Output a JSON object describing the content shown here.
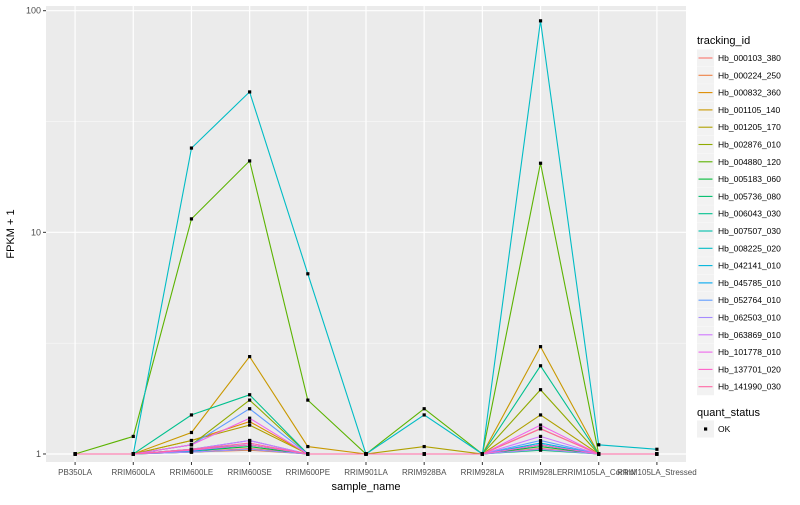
{
  "chart_data": {
    "type": "line",
    "title": "",
    "xlabel": "sample_name",
    "ylabel": "FPKM + 1",
    "y_scale": "log10",
    "ylim": [
      0.92,
      105
    ],
    "yticks": [
      1,
      10,
      100
    ],
    "ytick_labels": [
      "1",
      "10",
      "100"
    ],
    "grid": true,
    "legend_position": "right",
    "categories": [
      "PB350LA",
      "RRIM600LA",
      "RRIM600LE",
      "RRIM600SE",
      "RRIM600PE",
      "RRIM901LA",
      "RRIM928BA",
      "RRIM928LA",
      "RRIM928LE",
      "RRIM105LA_Control",
      "RRIM105LA_Stressed"
    ],
    "legend_title": "tracking_id",
    "series": [
      {
        "name": "Hb_000103_380",
        "color": "#F8766D",
        "values": [
          1.0,
          1.0,
          1.02,
          1.06,
          1.0,
          1.0,
          1.0,
          1.0,
          1.06,
          1.0,
          1.0
        ]
      },
      {
        "name": "Hb_000224_250",
        "color": "#EE8044",
        "values": [
          1.0,
          1.0,
          1.02,
          1.04,
          1.0,
          1.0,
          1.0,
          1.0,
          1.05,
          1.0,
          1.0
        ]
      },
      {
        "name": "Hb_000832_360",
        "color": "#DE8C00",
        "values": [
          1.0,
          1.0,
          1.15,
          1.4,
          1.0,
          1.0,
          1.0,
          1.0,
          1.3,
          1.0,
          1.0
        ]
      },
      {
        "name": "Hb_001105_140",
        "color": "#C99800",
        "values": [
          1.0,
          1.0,
          1.25,
          2.75,
          1.08,
          1.0,
          1.0,
          1.0,
          3.05,
          1.0,
          1.0
        ]
      },
      {
        "name": "Hb_001205_170",
        "color": "#B0A100",
        "values": [
          1.0,
          1.0,
          1.15,
          1.35,
          1.0,
          1.0,
          1.08,
          1.0,
          1.5,
          1.0,
          1.0
        ]
      },
      {
        "name": "Hb_002876_010",
        "color": "#8FAA00",
        "values": [
          1.0,
          1.0,
          1.1,
          1.75,
          1.0,
          1.0,
          1.0,
          1.0,
          1.95,
          1.0,
          1.0
        ]
      },
      {
        "name": "Hb_004880_120",
        "color": "#5BB300",
        "values": [
          1.0,
          1.2,
          11.5,
          21.0,
          1.75,
          1.0,
          1.6,
          1.0,
          20.5,
          1.0,
          1.0
        ]
      },
      {
        "name": "Hb_005183_060",
        "color": "#00BA38",
        "values": [
          1.0,
          1.0,
          1.03,
          1.08,
          1.0,
          1.0,
          1.0,
          1.0,
          1.08,
          1.0,
          1.0
        ]
      },
      {
        "name": "Hb_005736_080",
        "color": "#00BE6C",
        "values": [
          1.0,
          1.0,
          1.02,
          1.05,
          1.0,
          1.0,
          1.0,
          1.0,
          1.04,
          1.0,
          1.0
        ]
      },
      {
        "name": "Hb_006043_030",
        "color": "#00C08E",
        "values": [
          1.0,
          1.0,
          1.5,
          1.85,
          1.0,
          1.0,
          1.0,
          1.0,
          2.5,
          1.0,
          1.0
        ]
      },
      {
        "name": "Hb_007507_030",
        "color": "#00C0AB",
        "values": [
          1.0,
          1.0,
          1.05,
          1.1,
          1.0,
          1.0,
          1.0,
          1.0,
          1.1,
          1.0,
          1.0
        ]
      },
      {
        "name": "Hb_008225_020",
        "color": "#00BCC5",
        "values": [
          1.0,
          1.0,
          24.0,
          43.0,
          6.5,
          1.0,
          1.5,
          1.0,
          90.0,
          1.1,
          1.05
        ]
      },
      {
        "name": "Hb_042141_010",
        "color": "#00B5DC",
        "values": [
          1.0,
          1.0,
          1.05,
          1.15,
          1.0,
          1.0,
          1.0,
          1.0,
          1.12,
          1.0,
          1.0
        ]
      },
      {
        "name": "Hb_045785_010",
        "color": "#00A8F0",
        "values": [
          1.0,
          1.0,
          1.03,
          1.1,
          1.0,
          1.0,
          1.0,
          1.0,
          1.1,
          1.0,
          1.0
        ]
      },
      {
        "name": "Hb_052764_010",
        "color": "#619CFF",
        "values": [
          1.0,
          1.0,
          1.1,
          1.6,
          1.0,
          1.0,
          1.0,
          1.0,
          1.15,
          1.0,
          1.0
        ]
      },
      {
        "name": "Hb_062503_010",
        "color": "#A58AFF",
        "values": [
          1.0,
          1.0,
          1.02,
          1.05,
          1.0,
          1.0,
          1.0,
          1.0,
          1.05,
          1.0,
          1.0
        ]
      },
      {
        "name": "Hb_063869_010",
        "color": "#D078FF",
        "values": [
          1.0,
          1.0,
          1.05,
          1.15,
          1.0,
          1.0,
          1.0,
          1.0,
          1.2,
          1.0,
          1.0
        ]
      },
      {
        "name": "Hb_101778_010",
        "color": "#EF67EB",
        "values": [
          1.0,
          1.0,
          1.1,
          1.45,
          1.0,
          1.0,
          1.0,
          1.0,
          1.35,
          1.0,
          1.0
        ]
      },
      {
        "name": "Hb_137701_020",
        "color": "#FF61C9",
        "values": [
          1.0,
          1.0,
          1.04,
          1.1,
          1.0,
          1.0,
          1.0,
          1.0,
          1.1,
          1.0,
          1.0
        ]
      },
      {
        "name": "Hb_141990_030",
        "color": "#FF67A4",
        "values": [
          1.0,
          1.0,
          1.05,
          1.12,
          1.0,
          1.0,
          1.0,
          1.0,
          1.3,
          1.0,
          1.0
        ]
      }
    ],
    "shape_legend": {
      "title": "quant_status",
      "items": [
        "OK"
      ]
    },
    "colors": {
      "panel": "#EBEBEB",
      "grid_major": "#FFFFFF",
      "text": "#4D4D4D",
      "point": "#000000"
    }
  }
}
